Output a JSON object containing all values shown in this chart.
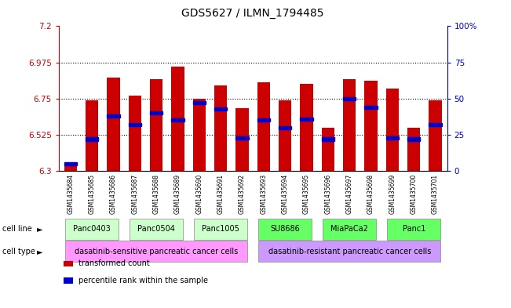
{
  "title": "GDS5627 / ILMN_1794485",
  "samples": [
    "GSM1435684",
    "GSM1435685",
    "GSM1435686",
    "GSM1435687",
    "GSM1435688",
    "GSM1435689",
    "GSM1435690",
    "GSM1435691",
    "GSM1435692",
    "GSM1435693",
    "GSM1435694",
    "GSM1435695",
    "GSM1435696",
    "GSM1435697",
    "GSM1435698",
    "GSM1435699",
    "GSM1435700",
    "GSM1435701"
  ],
  "bar_heights": [
    6.35,
    6.74,
    6.88,
    6.77,
    6.87,
    6.95,
    6.75,
    6.83,
    6.69,
    6.85,
    6.74,
    6.84,
    6.57,
    6.87,
    6.86,
    6.81,
    6.57,
    6.74
  ],
  "percentiles": [
    5,
    22,
    38,
    32,
    40,
    35,
    47,
    43,
    23,
    35,
    30,
    36,
    22,
    50,
    44,
    23,
    22,
    32
  ],
  "ymin": 6.3,
  "ymax": 7.2,
  "yticks": [
    6.3,
    6.525,
    6.75,
    6.975,
    7.2
  ],
  "ytick_labels": [
    "6.3",
    "6.525",
    "6.75",
    "6.975",
    "7.2"
  ],
  "right_yticks": [
    0,
    25,
    50,
    75,
    100
  ],
  "right_ytick_labels": [
    "0",
    "25",
    "50",
    "75",
    "100%"
  ],
  "bar_color": "#cc0000",
  "percentile_color": "#0000cc",
  "cell_lines": [
    {
      "label": "Panc0403",
      "start": 0,
      "end": 2,
      "color": "#ccffcc"
    },
    {
      "label": "Panc0504",
      "start": 3,
      "end": 5,
      "color": "#ccffcc"
    },
    {
      "label": "Panc1005",
      "start": 6,
      "end": 8,
      "color": "#ccffcc"
    },
    {
      "label": "SU8686",
      "start": 9,
      "end": 11,
      "color": "#66ff66"
    },
    {
      "label": "MiaPaCa2",
      "start": 12,
      "end": 14,
      "color": "#66ff66"
    },
    {
      "label": "Panc1",
      "start": 15,
      "end": 17,
      "color": "#66ff66"
    }
  ],
  "cell_types": [
    {
      "label": "dasatinib-sensitive pancreatic cancer cells",
      "start": 0,
      "end": 8,
      "color": "#ff99ff"
    },
    {
      "label": "dasatinib-resistant pancreatic cancer cells",
      "start": 9,
      "end": 17,
      "color": "#cc99ff"
    }
  ],
  "legend_items": [
    {
      "label": "transformed count",
      "color": "#cc0000"
    },
    {
      "label": "percentile rank within the sample",
      "color": "#0000cc"
    }
  ],
  "axis_left_color": "#cc0000",
  "axis_right_color": "#0000cc",
  "bg_plot": "#ffffff",
  "bg_outer": "#ffffff"
}
